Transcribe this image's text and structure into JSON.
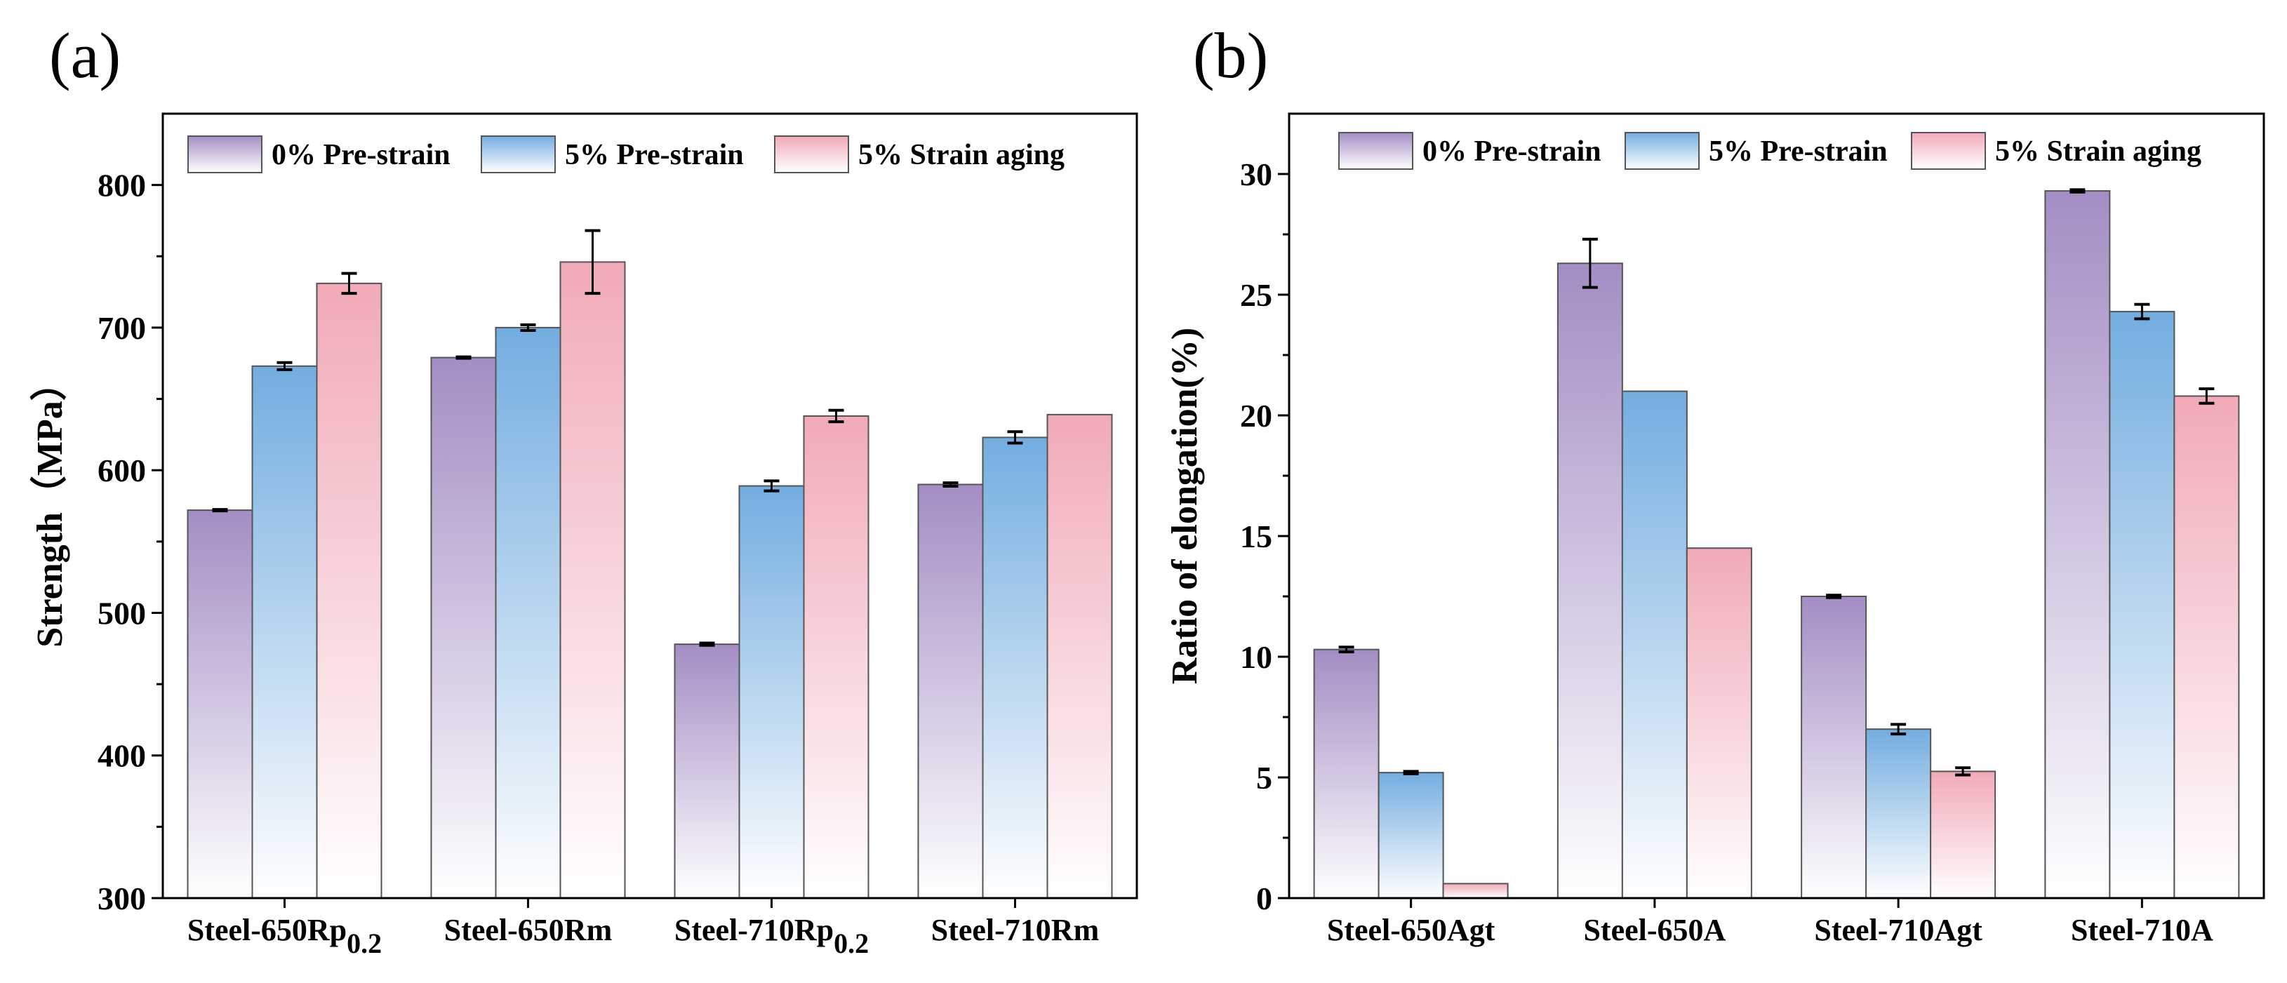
{
  "colors": {
    "series_0": "#a48dc4",
    "series_1": "#73ade0",
    "series_2": "#f1aab8",
    "axis": "#000000",
    "bar_edge": "#555555"
  },
  "chart_data": [
    {
      "type": "bar",
      "panel_label": "(a)",
      "title": "",
      "xlabel": "",
      "ylabel": "Strength（MPa）",
      "ylim": [
        300,
        850
      ],
      "yticks": [
        300,
        400,
        500,
        600,
        700,
        800
      ],
      "grid": false,
      "legend_position": "top",
      "categories": [
        "Steel-650Rp",
        "Steel-650Rm",
        "Steel-710Rp",
        "Steel-710Rm"
      ],
      "category_subscripts": [
        "0.2",
        "",
        "0.2",
        ""
      ],
      "series": [
        {
          "name": "0% Pre-strain",
          "values": [
            572,
            679,
            478,
            590
          ],
          "errors": [
            0.5,
            0.5,
            0.8,
            1.2
          ]
        },
        {
          "name": "5% Pre-strain",
          "values": [
            673,
            700,
            589,
            623
          ],
          "errors": [
            2.5,
            2,
            3.5,
            4
          ]
        },
        {
          "name": "5% Strain aging",
          "values": [
            731,
            746,
            638,
            639
          ],
          "errors": [
            7,
            22,
            4,
            0
          ]
        }
      ]
    },
    {
      "type": "bar",
      "panel_label": "(b)",
      "title": "",
      "xlabel": "",
      "ylabel": "Ratio of elongation(%)",
      "ylim": [
        0,
        32.5
      ],
      "yticks": [
        0,
        5,
        10,
        15,
        20,
        25,
        30
      ],
      "grid": false,
      "legend_position": "top",
      "categories": [
        "Steel-650Agt",
        "Steel-650A",
        "Steel-710Agt",
        "Steel-710A"
      ],
      "category_subscripts": [
        "",
        "",
        "",
        ""
      ],
      "series": [
        {
          "name": "0% Pre-strain",
          "values": [
            10.3,
            26.3,
            12.5,
            29.3
          ],
          "errors": [
            0.1,
            1.0,
            0.05,
            0.05
          ]
        },
        {
          "name": "5% Pre-strain",
          "values": [
            5.2,
            21.0,
            7.0,
            24.3
          ],
          "errors": [
            0.05,
            0,
            0.2,
            0.3
          ]
        },
        {
          "name": "5% Strain aging",
          "values": [
            0.6,
            14.5,
            5.25,
            20.8
          ],
          "errors": [
            0,
            0,
            0.15,
            0.3
          ]
        }
      ]
    }
  ]
}
